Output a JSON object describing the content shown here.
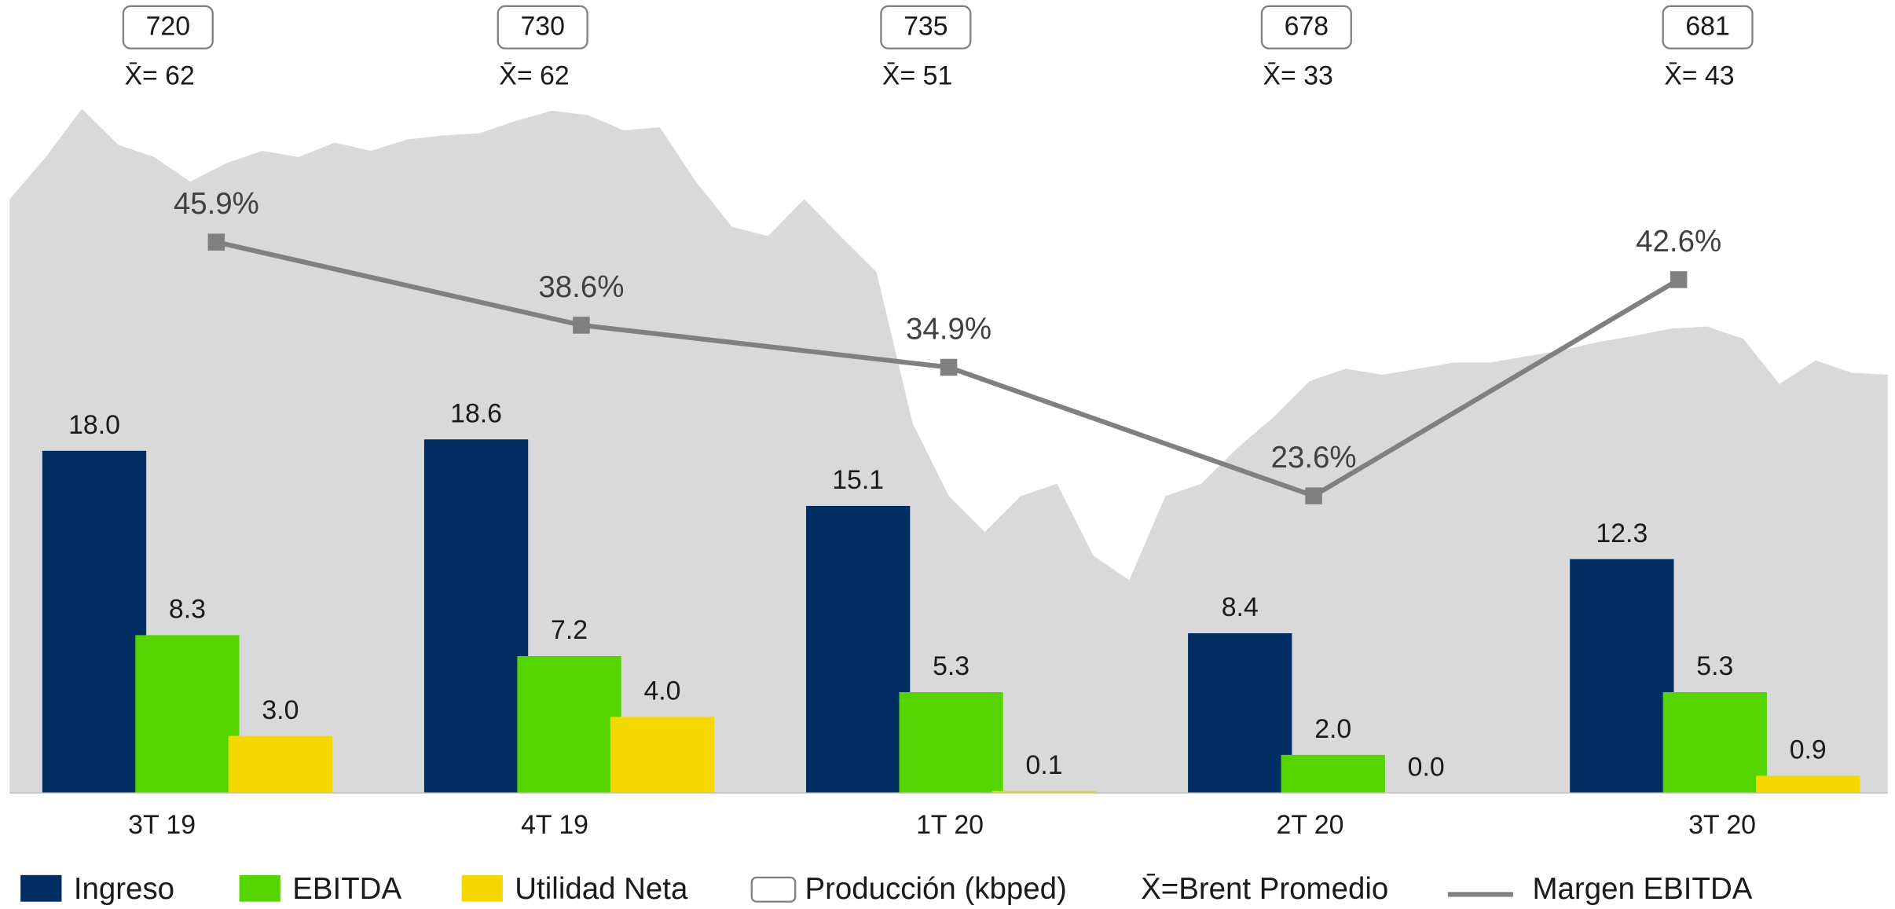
{
  "chart_data": {
    "type": "bar",
    "categories": [
      "3T 19",
      "4T 19",
      "1T 20",
      "2T 20",
      "3T 20"
    ],
    "ylim": [
      0,
      40
    ],
    "series": [
      {
        "name": "Ingreso",
        "color": "#002d62",
        "values": [
          18.0,
          18.6,
          15.1,
          8.4,
          12.3
        ],
        "value_labels": [
          "18.0",
          "18.6",
          "15.1",
          "8.4",
          "12.3"
        ]
      },
      {
        "name": "EBITDA",
        "color": "#55d400",
        "values": [
          8.3,
          7.2,
          5.3,
          2.0,
          5.3
        ],
        "value_labels": [
          "8.3",
          "7.2",
          "5.3",
          "2.0",
          "5.3"
        ]
      },
      {
        "name": "Utilidad Neta",
        "color": "#f5d800",
        "values": [
          3.0,
          4.0,
          0.1,
          0.0,
          0.9
        ],
        "value_labels": [
          "3.0",
          "4.0",
          "0.1",
          "0.0",
          "0.9"
        ]
      },
      {
        "name": "Margen EBITDA",
        "type": "line",
        "axis": "y2",
        "color": "#808080",
        "values": [
          45.9,
          38.6,
          34.9,
          23.6,
          42.6
        ],
        "value_labels": [
          "45.9%",
          "38.6%",
          "34.9%",
          "23.6%",
          "42.6%"
        ]
      }
    ],
    "y2lim": [
      -2.5,
      64.3
    ],
    "production": {
      "name": "Producción (kbped)",
      "values": [
        720,
        730,
        735,
        678,
        681
      ]
    },
    "brent": {
      "name": "X̄=Brent Promedio",
      "color": "#d9d9d9",
      "ylim": [
        0,
        74
      ],
      "mean_values": [
        62,
        62,
        51,
        33,
        43
      ],
      "mean_labels": [
        "X̄= 62",
        "X̄= 62",
        "X̄= 51",
        "X̄= 33",
        "X̄= 43"
      ],
      "values": [
        57.8,
        61.9,
        66.6,
        63.1,
        61.9,
        59.5,
        61.3,
        62.5,
        61.9,
        63.3,
        62.5,
        63.6,
        64.0,
        64.2,
        65.4,
        66.4,
        66.0,
        64.5,
        64.8,
        59.5,
        55.1,
        54.2,
        57.8,
        54.2,
        50.7,
        36.0,
        28.9,
        25.4,
        28.9,
        30.1,
        23.1,
        20.7,
        28.9,
        30.1,
        33.6,
        36.6,
        40.1,
        41.3,
        40.7,
        41.3,
        41.9,
        41.9,
        42.5,
        43.1,
        43.9,
        44.5,
        45.2,
        45.4,
        44.2,
        39.8,
        42.1,
        40.9,
        40.7
      ]
    }
  }
}
